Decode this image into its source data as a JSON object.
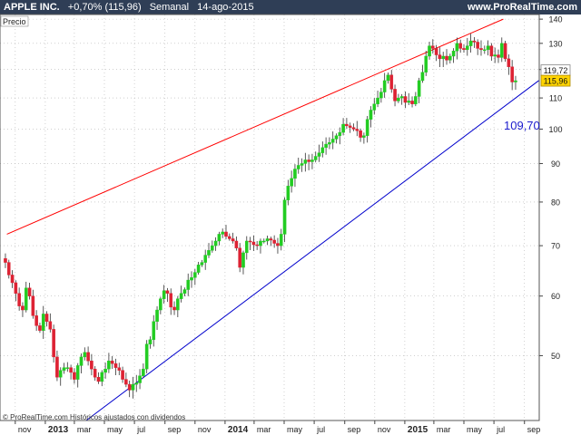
{
  "header": {
    "symbol": "APPLE INC.",
    "change": "+0,70% (115,96)",
    "period": "Semanal",
    "date": "14-ago-2015",
    "site": "www.ProRealTime.com"
  },
  "colors": {
    "header_bg": "#2f3e56",
    "up": "#22cc22",
    "down": "#dd2233",
    "upper_trendline": "#ff0000",
    "lower_trendline": "#0000cc",
    "grid": "#b4b4b4",
    "frame": "#555555"
  },
  "chart_data": {
    "type": "candlestick",
    "title": "APPLE INC.",
    "panel_label": "Precio",
    "footer": "© ProRealTime.com Históricos ajustados con dividendos",
    "y_scale": "log",
    "ylim": [
      41,
      142
    ],
    "y_ticks": [
      "140",
      "130",
      "120",
      "110",
      "100",
      "90",
      "80",
      "70",
      "60",
      "50"
    ],
    "x_ticks": [
      {
        "label": "nov",
        "date": "2012-11"
      },
      {
        "label": "2013",
        "date": "2013-01"
      },
      {
        "label": "mar",
        "date": "2013-03"
      },
      {
        "label": "may",
        "date": "2013-05"
      },
      {
        "label": "jul",
        "date": "2013-07"
      },
      {
        "label": "sep",
        "date": "2013-09"
      },
      {
        "label": "nov",
        "date": "2013-11"
      },
      {
        "label": "2014",
        "date": "2014-01"
      },
      {
        "label": "mar",
        "date": "2014-03"
      },
      {
        "label": "may",
        "date": "2014-05"
      },
      {
        "label": "jul",
        "date": "2014-07"
      },
      {
        "label": "sep",
        "date": "2014-09"
      },
      {
        "label": "nov",
        "date": "2014-11"
      },
      {
        "label": "2015",
        "date": "2015-01"
      },
      {
        "label": "mar",
        "date": "2015-03"
      },
      {
        "label": "may",
        "date": "2015-05"
      },
      {
        "label": "jul",
        "date": "2015-07"
      },
      {
        "label": "sep",
        "date": "2015-09"
      }
    ],
    "price_tags": [
      {
        "label": "119,72",
        "value": 119.72,
        "style": "outline"
      },
      {
        "label": "115,96",
        "value": 115.96,
        "style": "filled"
      }
    ],
    "annotation": {
      "label": "109,70",
      "value": 109.7
    },
    "trendlines": [
      {
        "name": "upper",
        "color": "#ff0000",
        "points": [
          [
            "2012-10-15",
            72.5
          ],
          [
            "2015-07-20",
            140
          ]
        ]
      },
      {
        "name": "lower",
        "color": "#0000cc",
        "points": [
          [
            "2013-03-25",
            41
          ],
          [
            "2015-09-30",
            116
          ]
        ]
      }
    ],
    "dates": [
      "2012-10-12",
      "2012-10-19",
      "2012-10-26",
      "2012-11-02",
      "2012-11-09",
      "2012-11-16",
      "2012-11-23",
      "2012-11-30",
      "2012-12-07",
      "2012-12-14",
      "2012-12-21",
      "2012-12-28",
      "2013-01-04",
      "2013-01-11",
      "2013-01-18",
      "2013-01-25",
      "2013-02-01",
      "2013-02-08",
      "2013-02-15",
      "2013-02-22",
      "2013-03-01",
      "2013-03-08",
      "2013-03-15",
      "2013-03-22",
      "2013-03-29",
      "2013-04-05",
      "2013-04-12",
      "2013-04-19",
      "2013-04-26",
      "2013-05-03",
      "2013-05-10",
      "2013-05-17",
      "2013-05-24",
      "2013-05-31",
      "2013-06-07",
      "2013-06-14",
      "2013-06-21",
      "2013-06-28",
      "2013-07-05",
      "2013-07-12",
      "2013-07-19",
      "2013-07-26",
      "2013-08-02",
      "2013-08-09",
      "2013-08-16",
      "2013-08-23",
      "2013-08-30",
      "2013-09-06",
      "2013-09-13",
      "2013-09-20",
      "2013-09-27",
      "2013-10-04",
      "2013-10-11",
      "2013-10-18",
      "2013-10-25",
      "2013-11-01",
      "2013-11-08",
      "2013-11-15",
      "2013-11-22",
      "2013-11-29",
      "2013-12-06",
      "2013-12-13",
      "2013-12-20",
      "2013-12-27",
      "2014-01-03",
      "2014-01-10",
      "2014-01-17",
      "2014-01-24",
      "2014-01-31",
      "2014-02-07",
      "2014-02-14",
      "2014-02-21",
      "2014-02-28",
      "2014-03-07",
      "2014-03-14",
      "2014-03-21",
      "2014-03-28",
      "2014-04-04",
      "2014-04-11",
      "2014-04-18",
      "2014-04-25",
      "2014-05-02",
      "2014-05-09",
      "2014-05-16",
      "2014-05-23",
      "2014-05-30",
      "2014-06-06",
      "2014-06-13",
      "2014-06-20",
      "2014-06-27",
      "2014-07-04",
      "2014-07-11",
      "2014-07-18",
      "2014-07-25",
      "2014-08-01",
      "2014-08-08",
      "2014-08-15",
      "2014-08-22",
      "2014-08-29",
      "2014-09-05",
      "2014-09-12",
      "2014-09-19",
      "2014-09-26",
      "2014-10-03",
      "2014-10-10",
      "2014-10-17",
      "2014-10-24",
      "2014-10-31",
      "2014-11-07",
      "2014-11-14",
      "2014-11-21",
      "2014-11-28",
      "2014-12-05",
      "2014-12-12",
      "2014-12-19",
      "2014-12-26",
      "2015-01-02",
      "2015-01-09",
      "2015-01-16",
      "2015-01-23",
      "2015-01-30",
      "2015-02-06",
      "2015-02-13",
      "2015-02-20",
      "2015-02-27",
      "2015-03-06",
      "2015-03-13",
      "2015-03-20",
      "2015-03-27",
      "2015-04-03",
      "2015-04-10",
      "2015-04-17",
      "2015-04-24",
      "2015-05-01",
      "2015-05-08",
      "2015-05-15",
      "2015-05-22",
      "2015-05-29",
      "2015-06-05",
      "2015-06-12",
      "2015-06-19",
      "2015-06-26",
      "2015-07-03",
      "2015-07-10",
      "2015-07-17",
      "2015-07-24",
      "2015-07-31",
      "2015-08-07",
      "2015-08-14"
    ],
    "close": [
      66.5,
      64.0,
      62.5,
      60.5,
      58.2,
      57.5,
      61.5,
      60.0,
      56.5,
      54.8,
      54.0,
      56.8,
      55.5,
      54.2,
      49.8,
      46.8,
      47.8,
      48.2,
      48.2,
      47.5,
      46.5,
      48.5,
      49.8,
      50.5,
      49.2,
      48.0,
      46.8,
      46.2,
      47.5,
      48.0,
      49.2,
      48.8,
      48.2,
      47.8,
      46.5,
      45.8,
      45.0,
      45.8,
      46.0,
      47.0,
      48.0,
      51.8,
      52.5,
      55.5,
      57.5,
      59.5,
      61.0,
      60.5,
      58.0,
      57.5,
      59.5,
      60.5,
      61.2,
      63.0,
      63.5,
      64.5,
      66.0,
      66.5,
      68.0,
      69.0,
      70.0,
      71.0,
      72.5,
      73.0,
      72.0,
      71.5,
      71.0,
      69.5,
      65.5,
      68.5,
      71.0,
      70.8,
      70.2,
      70.0,
      71.0,
      71.0,
      71.5,
      71.2,
      70.5,
      70.0,
      72.5,
      80.5,
      84.0,
      86.0,
      88.5,
      89.5,
      90.0,
      91.0,
      90.5,
      91.0,
      92.0,
      93.0,
      94.5,
      95.5,
      96.0,
      97.0,
      98.0,
      99.0,
      101.5,
      101.0,
      100.5,
      100.0,
      99.5,
      97.5,
      98.0,
      103.0,
      106.0,
      108.0,
      110.0,
      112.0,
      116.0,
      118.0,
      113.0,
      109.0,
      110.0,
      110.5,
      108.5,
      109.0,
      108.0,
      110.5,
      116.0,
      119.0,
      125.0,
      129.0,
      128.0,
      125.5,
      124.0,
      125.0,
      123.5,
      125.0,
      127.0,
      130.0,
      128.0,
      127.5,
      129.0,
      131.0,
      130.5,
      128.0,
      127.5,
      127.5,
      129.0,
      125.0,
      125.5,
      124.5,
      130.0,
      124.0,
      121.0,
      115.5,
      115.96
    ]
  }
}
